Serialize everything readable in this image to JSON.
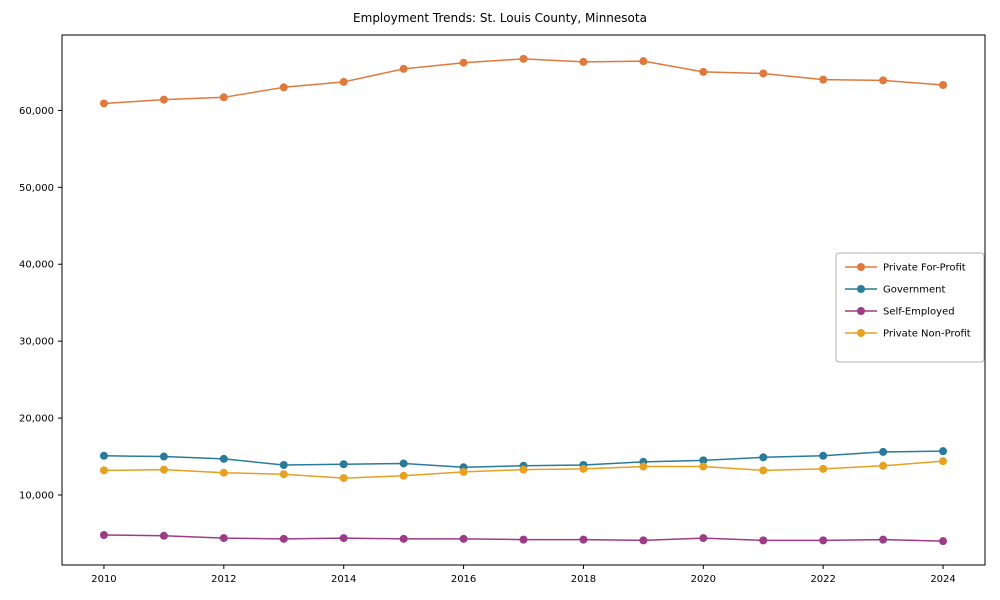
{
  "chart_data": {
    "type": "line",
    "title": "Employment Trends: St. Louis County, Minnesota",
    "xlabel": "",
    "ylabel": "",
    "grid": false,
    "legend_position": "center-right",
    "xlim": [
      2009.3,
      2024.7
    ],
    "ylim": [
      900,
      69800
    ],
    "x": [
      2010,
      2011,
      2012,
      2013,
      2014,
      2015,
      2016,
      2017,
      2018,
      2019,
      2020,
      2021,
      2022,
      2023,
      2024
    ],
    "x_ticks": [
      2010,
      2012,
      2014,
      2016,
      2018,
      2020,
      2022,
      2024
    ],
    "x_tick_labels": [
      "2010",
      "2012",
      "2014",
      "2016",
      "2018",
      "2020",
      "2022",
      "2024"
    ],
    "y_ticks": [
      10000,
      20000,
      30000,
      40000,
      50000,
      60000
    ],
    "y_tick_labels": [
      "10,000",
      "20,000",
      "30,000",
      "40,000",
      "50,000",
      "60,000"
    ],
    "series": [
      {
        "name": "Private For-Profit",
        "color": "#e0793c",
        "values": [
          60900,
          61400,
          61700,
          63000,
          63700,
          65400,
          66200,
          66700,
          66300,
          66400,
          65000,
          64800,
          64000,
          63900,
          63300
        ]
      },
      {
        "name": "Government",
        "color": "#2a7b9b",
        "values": [
          15100,
          15000,
          14700,
          13900,
          14000,
          14100,
          13600,
          13800,
          13900,
          14300,
          14500,
          14900,
          15100,
          15600,
          15700
        ]
      },
      {
        "name": "Self-Employed",
        "color": "#9c3b87",
        "values": [
          4800,
          4700,
          4400,
          4300,
          4400,
          4300,
          4300,
          4200,
          4200,
          4100,
          4400,
          4100,
          4100,
          4200,
          4000
        ]
      },
      {
        "name": "Private Non-Profit",
        "color": "#e6a022",
        "values": [
          13200,
          13300,
          12900,
          12700,
          12200,
          12500,
          13000,
          13300,
          13400,
          13700,
          13700,
          13200,
          13400,
          13800,
          14400
        ]
      }
    ]
  }
}
